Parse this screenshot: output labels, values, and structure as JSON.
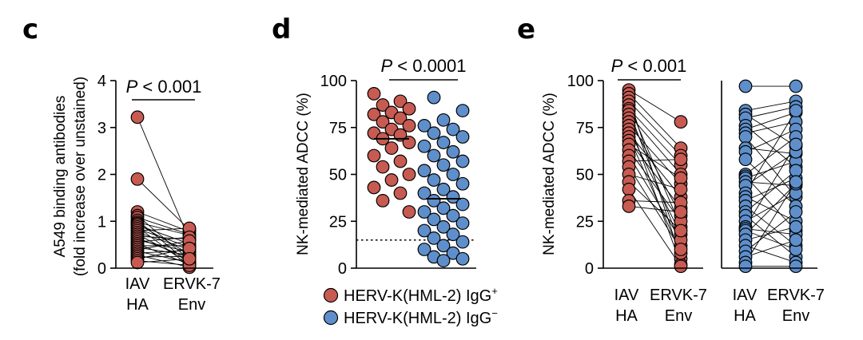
{
  "colors": {
    "red": "#C75B52",
    "blue": "#5E8FCB"
  },
  "chart_data": [
    {
      "type": "scatter",
      "panel": "c",
      "ylabel_line1": "A549 binding antibodies",
      "ylabel_line2": "(fold increase over unstained)",
      "ylim": [
        0,
        4
      ],
      "yticks": [
        "0",
        "1",
        "2",
        "3",
        "4"
      ],
      "categories": [
        {
          "line1": "IAV",
          "line2": "HA"
        },
        {
          "line1": "ERVK-7",
          "line2": "Env"
        }
      ],
      "annotation": {
        "italic": "P",
        "rest": " < 0.001"
      },
      "paired": true,
      "series": [
        {
          "name": "IAV HA",
          "color": "red",
          "values": [
            3.22,
            1.9,
            1.2,
            1.12,
            1.08,
            1.02,
            0.98,
            0.95,
            0.92,
            0.88,
            0.84,
            0.8,
            0.76,
            0.72,
            0.68,
            0.64,
            0.6,
            0.56,
            0.52,
            0.48,
            0.44,
            0.4,
            0.36,
            0.32,
            0.28,
            0.24,
            0.2,
            0.16,
            0.12
          ]
        },
        {
          "name": "ERVK-7 Env",
          "color": "red",
          "values": [
            0.6,
            0.82,
            0.78,
            0.18,
            0.72,
            0.1,
            0.7,
            0.3,
            0.52,
            0.05,
            0.45,
            0.85,
            0.4,
            0.14,
            0.62,
            0.22,
            0.35,
            0.66,
            0.08,
            0.48,
            0.28,
            0.58,
            0.12,
            0.38,
            0.02,
            0.25,
            0.42,
            0.06,
            0.2
          ]
        }
      ]
    },
    {
      "type": "scatter",
      "panel": "d",
      "ylabel": "NK-mediated ADCC (%)",
      "ylim": [
        0,
        100
      ],
      "yticks": [
        "0",
        "25",
        "50",
        "75",
        "100"
      ],
      "annotation": {
        "italic": "P",
        "rest": " < 0.0001"
      },
      "threshold": 15,
      "paired": false,
      "series": [
        {
          "name": "HERV-K(HML-2) IgG+",
          "color": "red",
          "median": 69,
          "values": [
            93,
            89,
            87,
            85,
            83,
            82,
            80,
            78,
            76,
            74,
            72,
            71,
            69,
            67,
            64,
            60,
            57,
            54,
            50,
            47,
            43,
            40,
            36,
            30
          ]
        },
        {
          "name": "HERV-K(HML-2) IgG-",
          "color": "blue",
          "median": 37,
          "values": [
            91,
            84,
            79,
            76,
            74,
            72,
            70,
            67,
            65,
            62,
            60,
            57,
            55,
            52,
            50,
            47,
            45,
            42,
            40,
            38,
            36,
            34,
            32,
            30,
            28,
            26,
            24,
            22,
            20,
            18,
            16,
            14,
            12,
            10,
            8,
            6,
            5,
            4
          ]
        }
      ],
      "legend": [
        {
          "color": "red",
          "label": "HERV-K(HML-2) IgG",
          "sup": "+"
        },
        {
          "color": "blue",
          "label": "HERV-K(HML-2) IgG",
          "sup": "−"
        }
      ]
    },
    {
      "type": "scatter",
      "panel": "e",
      "ylabel": "NK-mediated ADCC (%)",
      "ylim": [
        0,
        100
      ],
      "yticks": [
        "0",
        "25",
        "50",
        "75",
        "100"
      ],
      "annotation": {
        "italic": "P",
        "rest": " < 0.001"
      },
      "paired": true,
      "groups": [
        {
          "color": "red",
          "categories": [
            {
              "line1": "IAV",
              "line2": "HA"
            },
            {
              "line1": "ERVK-7",
              "line2": "Env"
            }
          ],
          "series": [
            {
              "name": "IAV HA",
              "values": [
                95,
                93,
                91,
                89,
                87,
                85,
                84,
                82,
                80,
                78,
                76,
                74,
                72,
                70,
                68,
                66,
                63,
                60,
                57,
                54,
                50,
                46,
                42,
                36,
                33
              ]
            },
            {
              "name": "ERVK-7 Env",
              "values": [
                78,
                64,
                5,
                60,
                22,
                55,
                12,
                50,
                28,
                2,
                45,
                18,
                38,
                8,
                32,
                48,
                25,
                15,
                58,
                10,
                42,
                20,
                1,
                35,
                30
              ]
            }
          ]
        },
        {
          "color": "blue",
          "categories": [
            {
              "line1": "IAV",
              "line2": "HA"
            },
            {
              "line1": "ERVK-7",
              "line2": "Env"
            }
          ],
          "series": [
            {
              "name": "IAV HA",
              "values": [
                97,
                84,
                82,
                80,
                76,
                74,
                72,
                70,
                64,
                62,
                58,
                50,
                49,
                48,
                46,
                44,
                40,
                38,
                36,
                33,
                30,
                28,
                25,
                22,
                21,
                20,
                18,
                15,
                12,
                9,
                6,
                3,
                1
              ]
            },
            {
              "name": "ERVK-7 Env",
              "values": [
                97,
                89,
                65,
                86,
                54,
                83,
                78,
                38,
                61,
                74,
                33,
                70,
                20,
                57,
                44,
                62,
                84,
                25,
                48,
                12,
                52,
                6,
                40,
                66,
                18,
                10,
                45,
                22,
                3,
                30,
                15,
                46,
                1
              ]
            }
          ]
        }
      ]
    }
  ]
}
